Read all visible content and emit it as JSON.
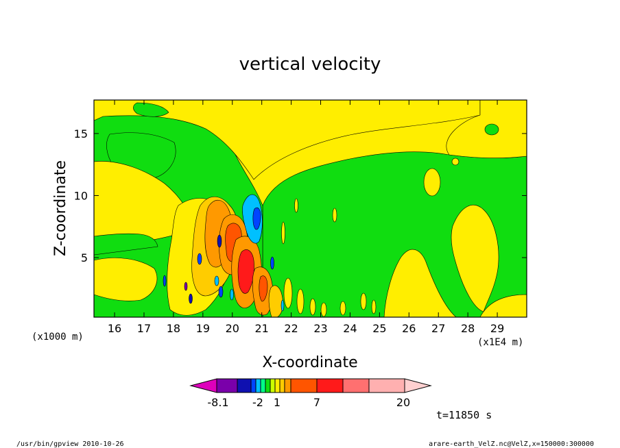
{
  "chart_data": {
    "type": "heatmap",
    "title": "vertical velocity",
    "xlabel": "X-coordinate",
    "ylabel": "Z-coordinate",
    "x_unit_note": "(x1E4 m)",
    "y_unit_note": "(x1000 m)",
    "xlim": [
      15.3,
      30.0
    ],
    "ylim": [
      0.2,
      17.7
    ],
    "x_ticks": [
      16,
      17,
      18,
      19,
      20,
      21,
      22,
      23,
      24,
      25,
      26,
      27,
      28,
      29
    ],
    "y_ticks": [
      5,
      10,
      15
    ],
    "colorbar": {
      "levels": [
        -8.1,
        -5.9,
        -4.0,
        -2.0,
        -1.0,
        -0.5,
        0,
        0.5,
        1,
        1.5,
        2,
        3,
        7,
        10,
        15,
        20
      ],
      "labeled_values": [
        "-8.1",
        "-2",
        "1",
        "7",
        "20"
      ],
      "colors": [
        "#dd00bb",
        "#7a00aa",
        "#0f10b0",
        "#0044ff",
        "#00c0ff",
        "#00ff88",
        "#10dd10",
        "#ccff00",
        "#ffee00",
        "#ffcc00",
        "#ff9900",
        "#ff5500",
        "#ff1a1a",
        "#ff7070",
        "#ffb0b0",
        "#ffd0d0"
      ]
    },
    "time_label": "t=11850 s"
  },
  "footer": {
    "left": "/usr/bin/gpview   2010-10-26",
    "right": "arare-earth_VelZ.nc@VelZ,x=150000:300000"
  }
}
